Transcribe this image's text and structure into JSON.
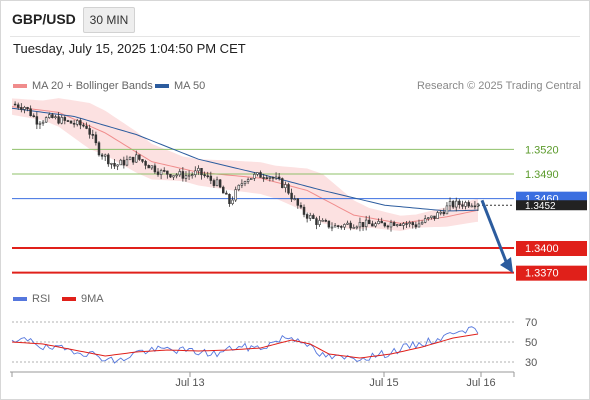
{
  "header": {
    "symbol": "GBP/USD",
    "timeframe": "30 MIN",
    "timestamp": "Tuesday, July 15, 2025 1:04:50 PM CET",
    "copyright": "Research © 2025 Trading Central"
  },
  "legend": {
    "ma20": {
      "label": "MA 20 + Bollinger Bands",
      "color": "#f08c8c"
    },
    "ma50": {
      "label": "MA 50",
      "color": "#2c5c9e"
    },
    "rsi": {
      "label": "RSI",
      "color": "#5577dd"
    },
    "ma9": {
      "label": "9MA",
      "color": "#e0201a"
    }
  },
  "colors": {
    "up_candle": "#ffffff",
    "down_candle": "#333333",
    "bollinger_fill": "#fbd9d9",
    "resistance": "#8fc06a",
    "support": "#e0201a",
    "pivot": "#3b6fe0",
    "forecast_arrow": "#2c5c9e"
  },
  "chart_data": [
    {
      "type": "candlestick",
      "ylim": [
        1.3355,
        1.358
      ],
      "x_tick_labels": [
        "Jul 13",
        "Jul 15",
        "Jul 16"
      ],
      "levels": [
        {
          "label": "1.3520",
          "value": 1.352,
          "kind": "resistance"
        },
        {
          "label": "1.3490",
          "value": 1.349,
          "kind": "resistance"
        },
        {
          "label": "1.3460",
          "value": 1.346,
          "kind": "pivot"
        },
        {
          "label": "1.3400",
          "value": 1.34,
          "kind": "support"
        },
        {
          "label": "1.3370",
          "value": 1.337,
          "kind": "support"
        }
      ],
      "current_price_label": "1.3452",
      "current_price": 1.3452,
      "forecast": {
        "from": 1.3458,
        "to": 1.3372
      },
      "close_anchors": [
        [
          0,
          1.3575
        ],
        [
          4,
          1.3572
        ],
        [
          8,
          1.3555
        ],
        [
          13,
          1.3558
        ],
        [
          18,
          1.3553
        ],
        [
          24,
          1.3548
        ],
        [
          28,
          1.3518
        ],
        [
          33,
          1.35
        ],
        [
          40,
          1.351
        ],
        [
          48,
          1.3492
        ],
        [
          56,
          1.3488
        ],
        [
          60,
          1.3492
        ],
        [
          66,
          1.3478
        ],
        [
          70,
          1.3455
        ],
        [
          75,
          1.3485
        ],
        [
          82,
          1.349
        ],
        [
          88,
          1.3475
        ],
        [
          93,
          1.3445
        ],
        [
          98,
          1.3432
        ],
        [
          104,
          1.3426
        ],
        [
          110,
          1.343
        ],
        [
          118,
          1.3428
        ],
        [
          124,
          1.3432
        ],
        [
          130,
          1.3428
        ],
        [
          136,
          1.3438
        ],
        [
          141,
          1.3452
        ],
        [
          147,
          1.3455
        ],
        [
          150,
          1.3456
        ]
      ],
      "ma50_anchors": [
        [
          0,
          1.357
        ],
        [
          20,
          1.356
        ],
        [
          40,
          1.3538
        ],
        [
          60,
          1.3508
        ],
        [
          80,
          1.349
        ],
        [
          100,
          1.347
        ],
        [
          120,
          1.3452
        ],
        [
          140,
          1.3445
        ],
        [
          150,
          1.3446
        ]
      ],
      "ma20_anchors": [
        [
          0,
          1.3572
        ],
        [
          15,
          1.3565
        ],
        [
          30,
          1.354
        ],
        [
          45,
          1.3505
        ],
        [
          60,
          1.3492
        ],
        [
          80,
          1.3485
        ],
        [
          95,
          1.347
        ],
        [
          110,
          1.344
        ],
        [
          125,
          1.343
        ],
        [
          140,
          1.3438
        ],
        [
          150,
          1.3446
        ]
      ],
      "band_width_anchors": [
        [
          0,
          0.001
        ],
        [
          10,
          0.0012
        ],
        [
          25,
          0.0028
        ],
        [
          40,
          0.0025
        ],
        [
          55,
          0.0015
        ],
        [
          70,
          0.0018
        ],
        [
          85,
          0.002
        ],
        [
          100,
          0.003
        ],
        [
          115,
          0.0012
        ],
        [
          130,
          0.0008
        ],
        [
          140,
          0.0012
        ],
        [
          150,
          0.0014
        ]
      ],
      "candle_count": 150
    },
    {
      "type": "line",
      "ylim": [
        20,
        80
      ],
      "y_ticks": [
        {
          "label": "70",
          "value": 70
        },
        {
          "label": "50",
          "value": 50
        },
        {
          "label": "30",
          "value": 30
        }
      ],
      "rsi_anchors": [
        [
          0,
          48
        ],
        [
          6,
          54
        ],
        [
          10,
          44
        ],
        [
          20,
          42
        ],
        [
          28,
          36
        ],
        [
          34,
          30
        ],
        [
          40,
          40
        ],
        [
          50,
          43
        ],
        [
          60,
          40
        ],
        [
          66,
          38
        ],
        [
          72,
          45
        ],
        [
          80,
          44
        ],
        [
          88,
          55
        ],
        [
          94,
          52
        ],
        [
          98,
          38
        ],
        [
          104,
          34
        ],
        [
          112,
          34
        ],
        [
          120,
          38
        ],
        [
          126,
          44
        ],
        [
          134,
          50
        ],
        [
          140,
          56
        ],
        [
          144,
          64
        ],
        [
          147,
          62
        ],
        [
          150,
          60
        ]
      ],
      "ma9_anchors": [
        [
          0,
          50
        ],
        [
          10,
          48
        ],
        [
          20,
          42
        ],
        [
          30,
          36
        ],
        [
          40,
          40
        ],
        [
          50,
          42
        ],
        [
          60,
          41
        ],
        [
          70,
          42
        ],
        [
          80,
          44
        ],
        [
          90,
          52
        ],
        [
          96,
          48
        ],
        [
          102,
          38
        ],
        [
          112,
          34
        ],
        [
          122,
          38
        ],
        [
          132,
          45
        ],
        [
          142,
          54
        ],
        [
          150,
          58
        ]
      ]
    }
  ]
}
